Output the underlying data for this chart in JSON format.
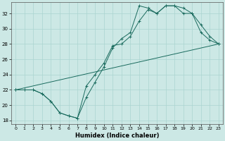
{
  "xlabel": "Humidex (Indice chaleur)",
  "bg_color": "#cce8e5",
  "grid_color": "#aad4d0",
  "line_color": "#1a6b5e",
  "xlim": [
    -0.5,
    23.5
  ],
  "ylim": [
    17.5,
    33.5
  ],
  "xticks": [
    0,
    1,
    2,
    3,
    4,
    5,
    6,
    7,
    8,
    9,
    10,
    11,
    12,
    13,
    14,
    15,
    16,
    17,
    18,
    19,
    20,
    21,
    22,
    23
  ],
  "yticks": [
    18,
    20,
    22,
    24,
    26,
    28,
    30,
    32
  ],
  "series1_x": [
    0,
    1,
    2,
    3,
    4,
    5,
    6,
    7,
    8,
    9,
    10,
    11,
    12,
    13,
    14,
    15,
    16,
    17,
    18,
    19,
    20,
    21,
    22,
    23
  ],
  "series1_y": [
    22,
    22,
    22,
    21.5,
    20.5,
    19.0,
    18.6,
    18.3,
    21.0,
    23.0,
    25.0,
    27.5,
    28.7,
    29.5,
    33.0,
    32.7,
    32.0,
    33.0,
    33.0,
    32.7,
    32.0,
    30.5,
    29.0,
    28.0
  ],
  "series2_x": [
    0,
    1,
    2,
    3,
    4,
    5,
    6,
    7,
    8,
    9,
    10,
    11,
    12,
    13,
    14,
    15,
    16,
    17,
    18,
    19,
    20,
    21,
    22,
    23
  ],
  "series2_y": [
    22,
    22,
    22,
    21.5,
    20.5,
    19.0,
    18.6,
    18.3,
    22.5,
    24.0,
    25.5,
    27.8,
    28.0,
    29.0,
    31.0,
    32.5,
    32.0,
    33.0,
    33.0,
    32.0,
    32.0,
    29.5,
    28.5,
    28.0
  ],
  "series3_x": [
    0,
    23
  ],
  "series3_y": [
    22.0,
    28.0
  ]
}
